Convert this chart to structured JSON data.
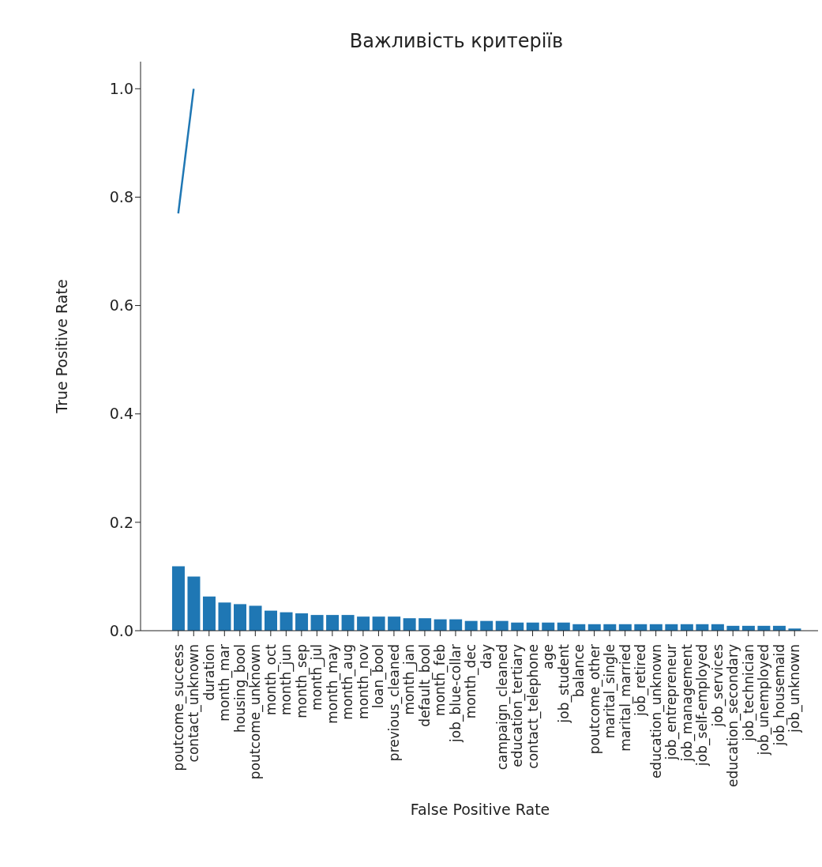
{
  "chart_data": {
    "type": "bar",
    "title": "Важливість критеріїв",
    "xlabel": "False Positive Rate",
    "ylabel": "True Positive Rate",
    "categories": [
      "poutcome_success",
      "contact_unknown",
      "duration",
      "month_mar",
      "housing_bool",
      "poutcome_unknown",
      "month_oct",
      "month_jun",
      "month_sep",
      "month_jul",
      "month_may",
      "month_aug",
      "month_nov",
      "loan_bool",
      "previous_cleaned",
      "month_jan",
      "default_bool",
      "month_feb",
      "job_blue-collar",
      "month_dec",
      "day",
      "campaign_cleaned",
      "education_tertiary",
      "contact_telephone",
      "age",
      "job_student",
      "balance",
      "poutcome_other",
      "marital_single",
      "marital_married",
      "job_retired",
      "education_unknown",
      "job_entrepreneur",
      "job_management",
      "job_self-employed",
      "job_services",
      "education_secondary",
      "job_technician",
      "job_unemployed",
      "job_housemaid",
      "job_unknown"
    ],
    "series": [
      {
        "color": "#1f77b4",
        "values": [
          0.119,
          0.1,
          0.063,
          0.052,
          0.049,
          0.046,
          0.037,
          0.034,
          0.032,
          0.029,
          0.029,
          0.029,
          0.026,
          0.026,
          0.026,
          0.023,
          0.023,
          0.021,
          0.021,
          0.018,
          0.018,
          0.018,
          0.015,
          0.015,
          0.015,
          0.015,
          0.012,
          0.012,
          0.012,
          0.012,
          0.012,
          0.012,
          0.012,
          0.012,
          0.012,
          0.012,
          0.009,
          0.009,
          0.009,
          0.009,
          0.004
        ]
      },
      {
        "type": "line",
        "color": "#1f77b4",
        "values": [
          0.77,
          1,
          null,
          null,
          null,
          null,
          null,
          null,
          null,
          null,
          null,
          null,
          null,
          null,
          null,
          null,
          null,
          null,
          null,
          null,
          null,
          null,
          null,
          null,
          null,
          null,
          null,
          null,
          null,
          null,
          null,
          null,
          null,
          null,
          null,
          null,
          null,
          null,
          null,
          null,
          null
        ]
      }
    ],
    "ylim": [
      0,
      1.05
    ],
    "yticks": [
      {
        "value": 0,
        "label": "0.0"
      },
      {
        "value": 0.2,
        "label": "0.2"
      },
      {
        "value": 0.4,
        "label": "0.4"
      },
      {
        "value": 0.6,
        "label": "0.6"
      },
      {
        "value": 0.8,
        "label": "0.8"
      },
      {
        "value": 1,
        "label": "1.0"
      }
    ]
  }
}
